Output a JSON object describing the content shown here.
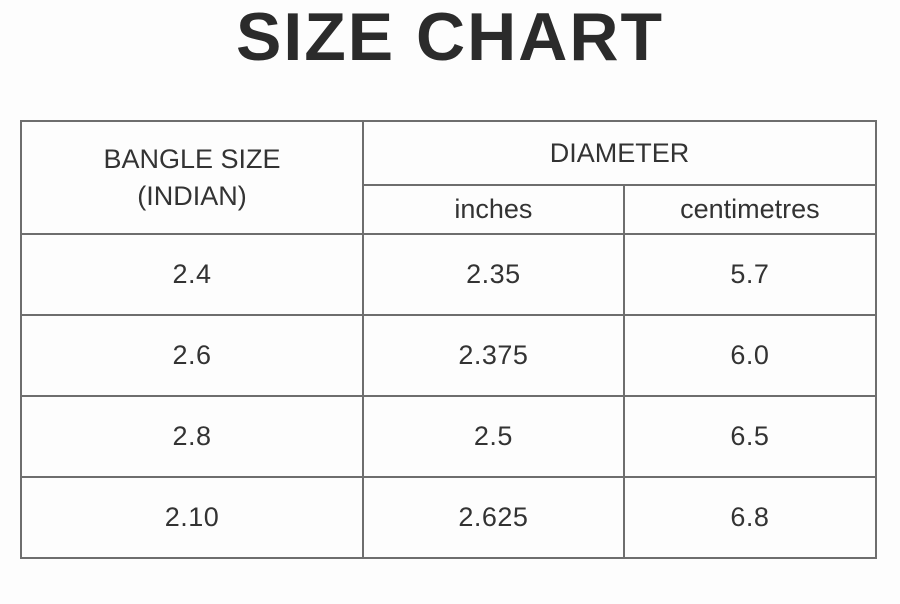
{
  "title": "SIZE CHART",
  "colors": {
    "background": "#fdfdfd",
    "text": "#333333",
    "border": "#6e6e6e"
  },
  "table": {
    "col1_header": {
      "line1": "BANGLE SIZE",
      "line2": "(INDIAN)"
    },
    "group_header": "DIAMETER",
    "sub_headers": {
      "inches": "inches",
      "centimetres": "centimetres"
    },
    "rows": [
      {
        "bangle": "2.4",
        "inches": "2.35",
        "cm": "5.7"
      },
      {
        "bangle": "2.6",
        "inches": "2.375",
        "cm": "6.0"
      },
      {
        "bangle": "2.8",
        "inches": "2.5",
        "cm": "6.5"
      },
      {
        "bangle": "2.10",
        "inches": "2.625",
        "cm": "6.8"
      }
    ]
  },
  "chart_data": {
    "type": "table",
    "title": "SIZE CHART",
    "columns": [
      "BANGLE SIZE (INDIAN)",
      "DIAMETER - inches",
      "DIAMETER - centimetres"
    ],
    "rows": [
      [
        "2.4",
        "2.35",
        "5.7"
      ],
      [
        "2.6",
        "2.375",
        "6.0"
      ],
      [
        "2.8",
        "2.5",
        "6.5"
      ],
      [
        "2.10",
        "2.625",
        "6.8"
      ]
    ]
  }
}
